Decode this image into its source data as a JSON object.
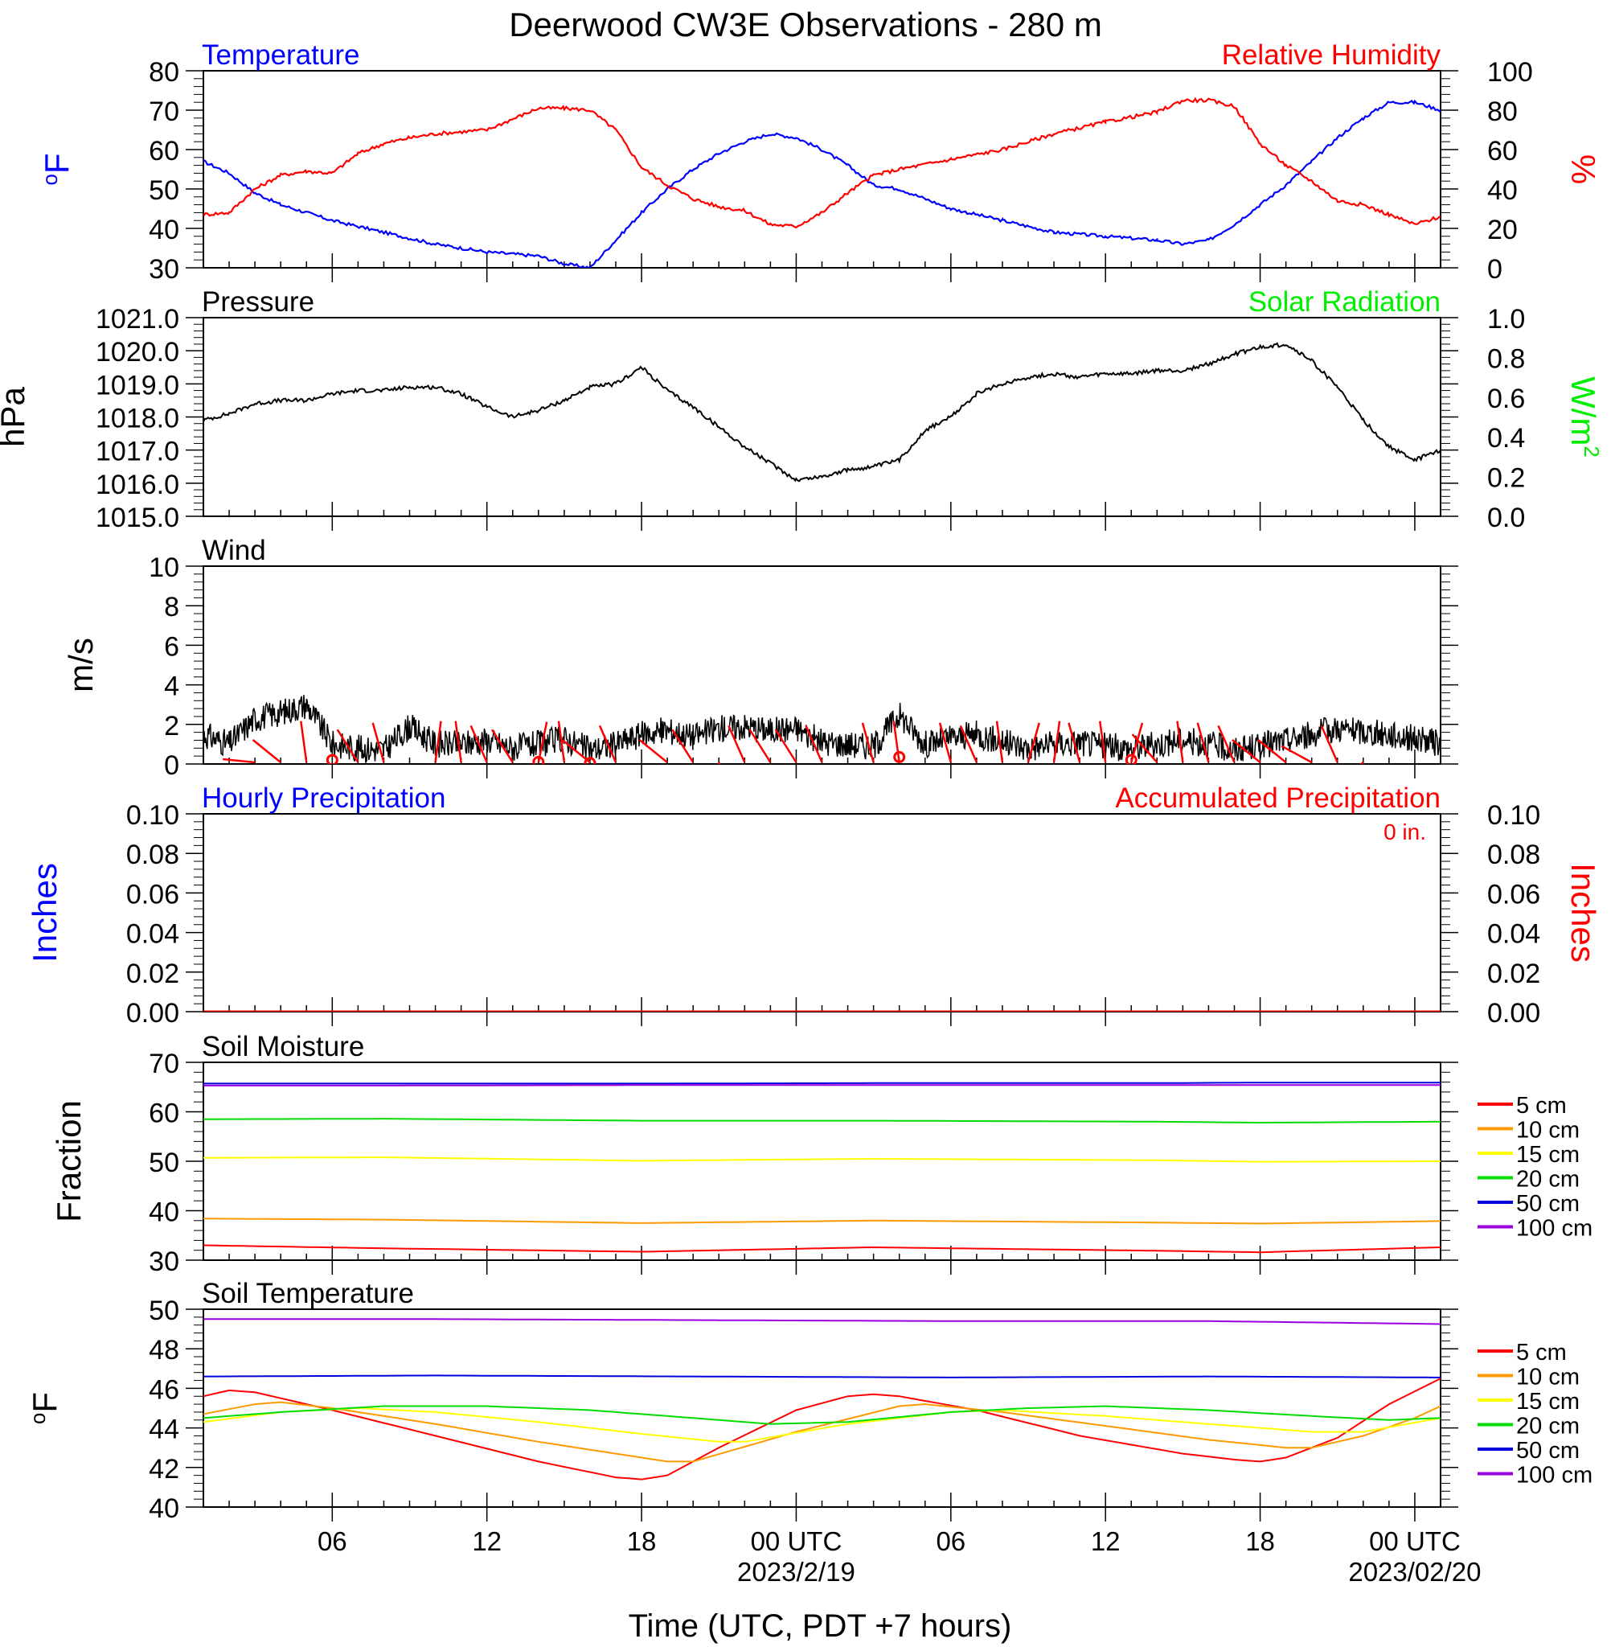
{
  "title": "Deerwood CW3E Observations - 280 m",
  "xlabel": "Time (UTC, PDT +7 hours)",
  "x_axis": {
    "ticks": [
      {
        "hour": 6,
        "label": "06",
        "sub": ""
      },
      {
        "hour": 12,
        "label": "12",
        "sub": ""
      },
      {
        "hour": 18,
        "label": "18",
        "sub": ""
      },
      {
        "hour": 24,
        "label": "00 UTC",
        "sub": "2023/2/19"
      },
      {
        "hour": 30,
        "label": "06",
        "sub": ""
      },
      {
        "hour": 36,
        "label": "12",
        "sub": ""
      },
      {
        "hour": 42,
        "label": "18",
        "sub": ""
      },
      {
        "hour": 48,
        "label": "00 UTC",
        "sub": "2023/02/20"
      }
    ],
    "range_hours": [
      1,
      49
    ]
  },
  "colors": {
    "temperature": "#0000ff",
    "humidity": "#ff0000",
    "pressure": "#000000",
    "solar": "#00ee00",
    "wind_speed": "#000000",
    "wind_barb": "#ff0000",
    "precip_hourly": "#0000ff",
    "precip_accum": "#ff0000",
    "depth_colors": [
      "#ff0000",
      "#ff9900",
      "#ffff00",
      "#00dd00",
      "#0000dd",
      "#9900dd"
    ]
  },
  "chart_data": [
    {
      "type": "line",
      "id": "temp-rh",
      "title_left": "Temperature",
      "title_right": "Relative Humidity",
      "ylabel_left": "oF",
      "ylabel_right": "%",
      "ylim_left": [
        30,
        80
      ],
      "yticks_left": [
        30,
        40,
        50,
        60,
        70,
        80
      ],
      "ylim_right": [
        0,
        100
      ],
      "yticks_right": [
        0,
        20,
        40,
        60,
        80,
        100
      ],
      "series": [
        {
          "name": "Temperature",
          "axis": "left",
          "x": [
            1,
            2,
            3,
            4,
            5,
            6,
            8,
            10,
            12,
            14,
            15,
            16,
            17,
            18,
            19,
            20,
            21,
            22,
            23,
            24,
            25,
            26,
            27,
            28,
            30,
            32,
            34,
            36,
            38,
            39,
            40,
            41,
            42,
            43,
            44,
            45,
            46,
            47,
            48,
            49
          ],
          "y": [
            57,
            54,
            49,
            46,
            44,
            42,
            39,
            36,
            34,
            33,
            31,
            30,
            37,
            44,
            50,
            55,
            59,
            62,
            64,
            63,
            60,
            56,
            51,
            50,
            45,
            42,
            39,
            38,
            37,
            36,
            37,
            41,
            46,
            51,
            57,
            63,
            68,
            72,
            72,
            70
          ]
        },
        {
          "name": "Relative Humidity",
          "axis": "right",
          "x": [
            1,
            2,
            3,
            4,
            5,
            6,
            7,
            8,
            9,
            10,
            12,
            14,
            15,
            16,
            17,
            18,
            19,
            20,
            21,
            22,
            23,
            24,
            25,
            26,
            27,
            28,
            30,
            32,
            34,
            36,
            38,
            39,
            40,
            41,
            42,
            43,
            44,
            45,
            46,
            47,
            48,
            49
          ],
          "y": [
            27,
            28,
            40,
            47,
            49,
            48,
            58,
            63,
            66,
            68,
            70,
            81,
            81,
            80,
            70,
            51,
            42,
            35,
            31,
            29,
            22,
            21,
            28,
            38,
            47,
            50,
            55,
            60,
            68,
            74,
            79,
            85,
            85,
            82,
            63,
            52,
            44,
            34,
            32,
            27,
            22,
            26
          ]
        }
      ]
    },
    {
      "type": "line",
      "id": "pressure-solar",
      "title_left": "Pressure",
      "title_right": "Solar Radiation",
      "ylabel_left": "hPa",
      "ylabel_right": "W/m2",
      "ylim_left": [
        1015,
        1021
      ],
      "yticks_left": [
        1015.0,
        1016.0,
        1017.0,
        1018.0,
        1019.0,
        1020.0,
        1021.0
      ],
      "ylim_right": [
        0,
        1
      ],
      "yticks_right": [
        0.0,
        0.2,
        0.4,
        0.6,
        0.8,
        1.0
      ],
      "series": [
        {
          "name": "Pressure",
          "axis": "left",
          "x": [
            1,
            2,
            3,
            4,
            5,
            6,
            7,
            8,
            9,
            10,
            11,
            12,
            13,
            14,
            15,
            16,
            17,
            18,
            19,
            20,
            21,
            22,
            23,
            24,
            25,
            26,
            27,
            28,
            29,
            30,
            31,
            32,
            33,
            34,
            35,
            36,
            37,
            38,
            39,
            40,
            41,
            42,
            43,
            44,
            45,
            46,
            47,
            48,
            49
          ],
          "y": [
            1017.9,
            1018.1,
            1018.4,
            1018.5,
            1018.5,
            1018.7,
            1018.8,
            1018.8,
            1018.9,
            1018.9,
            1018.7,
            1018.3,
            1018.0,
            1018.2,
            1018.5,
            1018.9,
            1019.0,
            1019.5,
            1018.8,
            1018.3,
            1017.7,
            1017.1,
            1016.6,
            1016.1,
            1016.2,
            1016.4,
            1016.5,
            1016.7,
            1017.6,
            1018.0,
            1018.7,
            1019.0,
            1019.2,
            1019.3,
            1019.2,
            1019.3,
            1019.3,
            1019.4,
            1019.4,
            1019.6,
            1019.9,
            1020.1,
            1020.2,
            1019.7,
            1018.9,
            1017.9,
            1017.1,
            1016.7,
            1017.0
          ]
        }
      ]
    },
    {
      "type": "line",
      "id": "wind",
      "title_left": "Wind",
      "ylabel_left": "m/s",
      "ylim_left": [
        0,
        10
      ],
      "yticks_left": [
        0,
        2,
        4,
        6,
        8,
        10
      ],
      "series": [
        {
          "name": "Wind speed",
          "axis": "left",
          "x": [
            1,
            2,
            3,
            4,
            5,
            6,
            7,
            8,
            9,
            10,
            11,
            12,
            13,
            14,
            15,
            16,
            17,
            18,
            19,
            20,
            21,
            22,
            23,
            24,
            25,
            26,
            27,
            28,
            29,
            30,
            31,
            32,
            33,
            34,
            35,
            36,
            37,
            38,
            39,
            40,
            41,
            42,
            43,
            44,
            45,
            46,
            47,
            48,
            49
          ],
          "y": [
            1.5,
            1.0,
            2.3,
            2.6,
            3.0,
            1.0,
            0.8,
            0.7,
            1.9,
            1.0,
            1.0,
            1.2,
            0.8,
            1.0,
            1.3,
            0.7,
            1.0,
            1.5,
            1.7,
            1.4,
            1.8,
            1.9,
            1.7,
            1.8,
            1.1,
            1.0,
            0.9,
            2.5,
            1.0,
            1.3,
            1.5,
            1.1,
            0.8,
            1.0,
            1.1,
            0.9,
            0.8,
            1.0,
            1.2,
            1.0,
            0.7,
            0.9,
            1.2,
            1.5,
            1.8,
            1.6,
            1.5,
            1.3,
            1.0
          ]
        },
        {
          "name": "Wind barbs",
          "axis": "left",
          "style": "barb",
          "x": [
            3,
            4,
            5,
            7,
            8,
            10,
            11,
            12,
            13,
            14,
            15,
            16,
            17,
            19,
            20,
            21,
            22,
            23,
            24,
            25,
            27,
            28,
            30,
            31,
            32,
            33,
            34,
            35,
            36,
            37,
            38,
            39,
            40,
            41,
            42,
            43,
            44,
            45,
            46
          ],
          "y": [
            270,
            300,
            350,
            320,
            340,
            10,
            350,
            330,
            320,
            15,
            350,
            300,
            330,
            300,
            320,
            160,
            330,
            320,
            320,
            330,
            340,
            350,
            340,
            330,
            350,
            20,
            10,
            340,
            350,
            20,
            310,
            350,
            340,
            330,
            300,
            300,
            290,
            330,
            230
          ]
        },
        {
          "name": "Calm",
          "axis": "left",
          "style": "calm",
          "x": [
            6,
            14,
            16,
            28,
            37
          ],
          "y": [
            0.2,
            0.1,
            0.05,
            0.35,
            0.2
          ]
        }
      ]
    },
    {
      "type": "line",
      "id": "precip",
      "title_left": "Hourly Precipitation",
      "title_right": "Accumulated Precipitation",
      "annotation": "0 in.",
      "ylabel_left": "Inches",
      "ylabel_right": "Inches",
      "ylim_left": [
        0,
        0.1
      ],
      "yticks_left": [
        0.0,
        0.02,
        0.04,
        0.06,
        0.08,
        0.1
      ],
      "ylim_right": [
        0,
        0.1
      ],
      "yticks_right": [
        0.0,
        0.02,
        0.04,
        0.06,
        0.08,
        0.1
      ],
      "series": [
        {
          "name": "Hourly Precipitation",
          "axis": "left",
          "x": [
            1,
            49
          ],
          "y": [
            0,
            0
          ]
        },
        {
          "name": "Accumulated Precipitation",
          "axis": "right",
          "x": [
            1,
            49
          ],
          "y": [
            0,
            0
          ]
        }
      ]
    },
    {
      "type": "line",
      "id": "soil-moisture",
      "title_left": "Soil Moisture",
      "ylabel_left": "Fraction",
      "ylim_left": [
        30,
        70
      ],
      "yticks_left": [
        30,
        40,
        50,
        60,
        70
      ],
      "series": [
        {
          "name": "5 cm",
          "axis": "left",
          "x": [
            1,
            8,
            18,
            27,
            38,
            42,
            49
          ],
          "y": [
            33.0,
            32.4,
            31.7,
            32.6,
            31.9,
            31.6,
            32.6
          ]
        },
        {
          "name": "10 cm",
          "axis": "left",
          "x": [
            1,
            8,
            18,
            27,
            38,
            42,
            49
          ],
          "y": [
            38.4,
            38.2,
            37.5,
            38.0,
            37.6,
            37.4,
            37.9
          ]
        },
        {
          "name": "15 cm",
          "axis": "left",
          "x": [
            1,
            8,
            18,
            27,
            38,
            42,
            49
          ],
          "y": [
            50.7,
            50.8,
            50.1,
            50.5,
            50.2,
            49.9,
            50.0
          ]
        },
        {
          "name": "20 cm",
          "axis": "left",
          "x": [
            1,
            8,
            18,
            27,
            38,
            42,
            49
          ],
          "y": [
            58.5,
            58.6,
            58.2,
            58.2,
            58.0,
            57.8,
            58.0
          ]
        },
        {
          "name": "50 cm",
          "axis": "left",
          "x": [
            1,
            8,
            18,
            27,
            38,
            42,
            49
          ],
          "y": [
            65.7,
            65.7,
            65.7,
            65.8,
            65.8,
            65.9,
            65.9
          ]
        },
        {
          "name": "100 cm",
          "axis": "left",
          "x": [
            1,
            8,
            18,
            27,
            38,
            42,
            49
          ],
          "y": [
            65.3,
            65.3,
            65.4,
            65.4,
            65.4,
            65.4,
            65.4
          ]
        }
      ]
    },
    {
      "type": "line",
      "id": "soil-temp",
      "title_left": "Soil Temperature",
      "ylabel_left": "oF",
      "ylim_left": [
        40,
        50
      ],
      "yticks_left": [
        40.0,
        42.0,
        44.0,
        46.0,
        48.0,
        50.0
      ],
      "series": [
        {
          "name": "5 cm",
          "axis": "left",
          "x": [
            1,
            2,
            3,
            6,
            10,
            14,
            17,
            18,
            19,
            21,
            24,
            26,
            27,
            28,
            31,
            35,
            39,
            41,
            42,
            43,
            45,
            47,
            49
          ],
          "y": [
            45.6,
            45.9,
            45.8,
            44.9,
            43.6,
            42.3,
            41.5,
            41.4,
            41.6,
            43.0,
            44.9,
            45.6,
            45.7,
            45.6,
            44.9,
            43.6,
            42.7,
            42.4,
            42.3,
            42.5,
            43.5,
            45.2,
            46.5
          ]
        },
        {
          "name": "10 cm",
          "axis": "left",
          "x": [
            1,
            3,
            4,
            6,
            10,
            14,
            19,
            20,
            24,
            28,
            29,
            32,
            36,
            40,
            43,
            44,
            46,
            48,
            49
          ],
          "y": [
            44.7,
            45.2,
            45.3,
            45.0,
            44.2,
            43.3,
            42.3,
            42.3,
            43.8,
            45.1,
            45.2,
            44.8,
            44.1,
            43.4,
            43.0,
            43.0,
            43.6,
            44.5,
            45.1
          ]
        },
        {
          "name": "15 cm",
          "axis": "left",
          "x": [
            1,
            4,
            7,
            10,
            14,
            18,
            21,
            22,
            26,
            30,
            32,
            36,
            40,
            44,
            46,
            49
          ],
          "y": [
            44.3,
            44.8,
            45.0,
            44.8,
            44.3,
            43.7,
            43.3,
            43.3,
            44.2,
            44.8,
            44.9,
            44.6,
            44.2,
            43.8,
            43.8,
            44.5
          ]
        },
        {
          "name": "20 cm",
          "axis": "left",
          "x": [
            1,
            4,
            8,
            12,
            16,
            20,
            23,
            26,
            30,
            33,
            36,
            40,
            44,
            47,
            49
          ],
          "y": [
            44.5,
            44.8,
            45.1,
            45.1,
            44.9,
            44.5,
            44.2,
            44.3,
            44.8,
            45.0,
            45.1,
            44.9,
            44.6,
            44.4,
            44.5
          ]
        },
        {
          "name": "50 cm",
          "axis": "left",
          "x": [
            1,
            10,
            20,
            30,
            40,
            49
          ],
          "y": [
            46.6,
            46.65,
            46.6,
            46.55,
            46.6,
            46.55
          ]
        },
        {
          "name": "100 cm",
          "axis": "left",
          "x": [
            1,
            10,
            20,
            30,
            40,
            49
          ],
          "y": [
            49.5,
            49.5,
            49.45,
            49.4,
            49.4,
            49.25
          ]
        }
      ]
    }
  ]
}
